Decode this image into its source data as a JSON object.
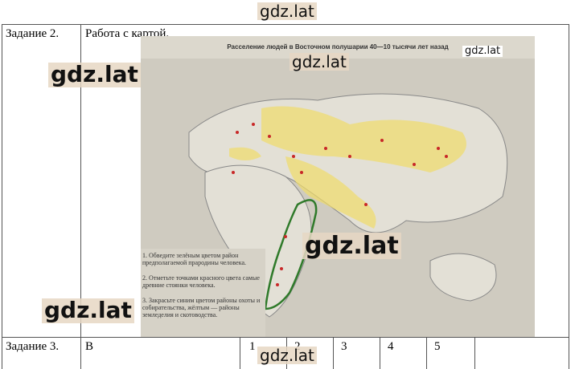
{
  "watermarks": [
    "gdz.lat",
    "gdz.lat",
    "gdz.lat",
    "gdz.lat",
    "gdz.lat",
    "gdz.lat",
    "gdz.lat"
  ],
  "table": {
    "rows": [
      [
        "Задание 2.",
        "Работа с картой."
      ],
      [
        "Задание 3.",
        "В",
        "1",
        "2",
        "3",
        "4",
        "5"
      ]
    ]
  },
  "map": {
    "title": "Расселение людей в Восточном полушарии 40—10 тысячи лет назад",
    "tasks": [
      "1. Обведите зелёным цветом район предполагаемой прародины человека.",
      "2. Отметьте точками красного цвета самые древние стоянки человека.",
      "3. Закрасьте синим цветом районы охоты и собирательства, жёлтым — районы земледелия и скотоводства."
    ]
  }
}
